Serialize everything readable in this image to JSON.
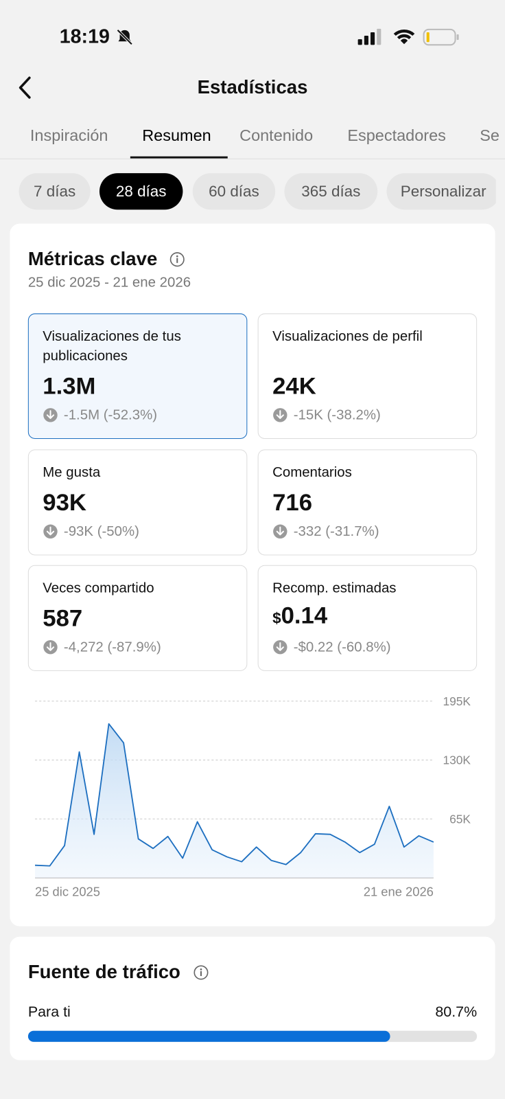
{
  "status_bar": {
    "time": "18:19"
  },
  "header": {
    "title": "Estadísticas"
  },
  "tabs": [
    {
      "label": "Inspiración",
      "active": false
    },
    {
      "label": "Resumen",
      "active": true
    },
    {
      "label": "Contenido",
      "active": false
    },
    {
      "label": "Espectadores",
      "active": false
    },
    {
      "label": "Se",
      "active": false
    }
  ],
  "periods": [
    {
      "label": "7 días",
      "active": false
    },
    {
      "label": "28 días",
      "active": true
    },
    {
      "label": "60 días",
      "active": false
    },
    {
      "label": "365 días",
      "active": false
    },
    {
      "label": "Personalizar",
      "active": false
    }
  ],
  "key_metrics": {
    "title": "Métricas clave",
    "date_range": "25 dic 2025 - 21 ene 2026",
    "tiles": [
      {
        "label": "Visualizaciones de tus publicaciones",
        "value": "1.3M",
        "change": "-1.5M (-52.3%)",
        "selected": true
      },
      {
        "label": "Visualizaciones de perfil",
        "value": "24K",
        "change": "-15K (-38.2%)",
        "selected": false
      },
      {
        "label": "Me gusta",
        "value": "93K",
        "change": "-93K (-50%)",
        "selected": false
      },
      {
        "label": "Comentarios",
        "value": "716",
        "change": "-332 (-31.7%)",
        "selected": false
      },
      {
        "label": "Veces compartido",
        "value": "587",
        "change": "-4,272 (-87.9%)",
        "selected": false
      },
      {
        "label": "Recomp. estimadas",
        "currency": "$",
        "value": "0.14",
        "change": "-$0.22 (-60.8%)",
        "selected": false
      }
    ]
  },
  "chart_data": {
    "type": "area",
    "color": "#1d6fc0",
    "grid": true,
    "categories": [
      "25 dic 2025",
      null,
      null,
      null,
      null,
      null,
      null,
      null,
      null,
      null,
      null,
      null,
      null,
      null,
      null,
      null,
      null,
      null,
      null,
      null,
      null,
      null,
      null,
      null,
      null,
      null,
      null,
      "21 ene 2026"
    ],
    "values": [
      13900,
      13200,
      35600,
      139000,
      48000,
      170000,
      149000,
      43000,
      32500,
      45700,
      21700,
      61900,
      31000,
      23200,
      17800,
      34000,
      19300,
      14700,
      27900,
      48700,
      48000,
      39500,
      27900,
      37100,
      78900,
      34000,
      46400,
      39500
    ],
    "ylim": [
      0,
      195000
    ],
    "yticks": [
      {
        "value": 65000,
        "label": "65K"
      },
      {
        "value": 130000,
        "label": "130K"
      },
      {
        "value": 195000,
        "label": "195K"
      }
    ]
  },
  "traffic_source": {
    "title": "Fuente de tráfico",
    "xlim": [
      0,
      100
    ],
    "items": [
      {
        "label": "Para ti",
        "value": 80.7,
        "value_label": "80.7%",
        "color": "#0a6fd8"
      }
    ]
  }
}
